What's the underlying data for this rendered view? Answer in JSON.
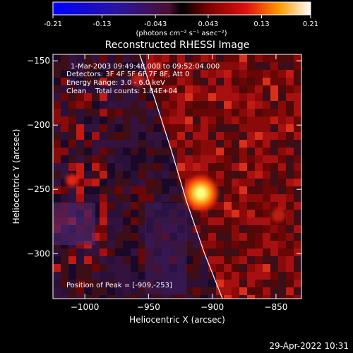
{
  "chart_data": {
    "type": "heatmap",
    "title": "Reconstructed RHESSI Image",
    "xlabel": "Heliocentric X (arcsec)",
    "ylabel": "Heliocentric Y (arcsec)",
    "xlim": [
      -1025,
      -830
    ],
    "ylim": [
      -335,
      -145
    ],
    "xticks": [
      -1000,
      -950,
      -900,
      -850
    ],
    "yticks": [
      -150,
      -200,
      -250,
      -300
    ],
    "colorbar": {
      "min": -0.21,
      "max": 0.21,
      "ticks": [
        "-0.21",
        "-0.13",
        "-0.043",
        "0.043",
        "0.13",
        "0.21"
      ],
      "units": "(photons cm⁻² s⁻¹ asec⁻²)"
    },
    "annotations": {
      "time_range": "1-Mar-2003 09:49:48.000 to 09:52:04.000",
      "detectors": "Detectors: 3F 4F 5F 6F 7F 8F, Att 0",
      "energy": "Energy Range: 3.0 - 6.0 keV",
      "method": "Clean    Total counts: 1.84E+04",
      "peak": "Position of Peak = [-909,-253]"
    },
    "peak_position": [
      -909,
      -253
    ],
    "limb_curve": {
      "x": [
        -957,
        -945,
        -932,
        -920,
        -906,
        -892
      ],
      "y": [
        -145,
        -180,
        -220,
        -260,
        -300,
        -335
      ]
    },
    "timestamp": "29-Apr-2022 10:31"
  }
}
